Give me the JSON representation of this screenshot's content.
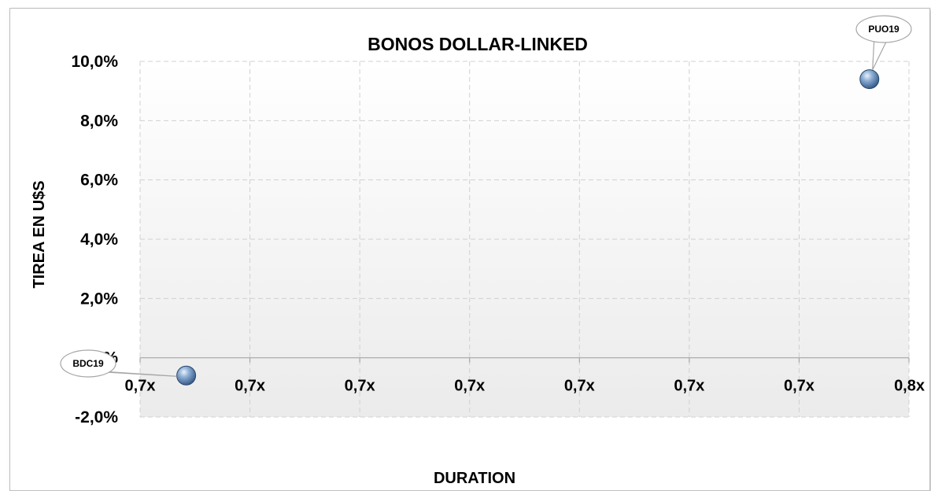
{
  "chart_data": {
    "type": "scatter",
    "title": "BONOS DOLLAR-LINKED",
    "xlabel": "DURATION",
    "ylabel": "TIREA EN U$S",
    "y_ticks": [
      "10,0%",
      "8,0%",
      "6,0%",
      "4,0%",
      "2,0%",
      "0,0%",
      "-2,0%"
    ],
    "y_tick_values": [
      10,
      8,
      6,
      4,
      2,
      0,
      -2
    ],
    "x_ticks": [
      "0,7x",
      "0,7x",
      "0,7x",
      "0,7x",
      "0,7x",
      "0,7x",
      "0,7x",
      "0,8x"
    ],
    "ylim": [
      -2,
      10
    ],
    "x_tick_count": 8,
    "grid": true,
    "points": [
      {
        "label": "BDC19",
        "x_index": 0.42,
        "y": -0.6
      },
      {
        "label": "PUO19",
        "x_index": 6.64,
        "y": 9.4
      }
    ]
  }
}
